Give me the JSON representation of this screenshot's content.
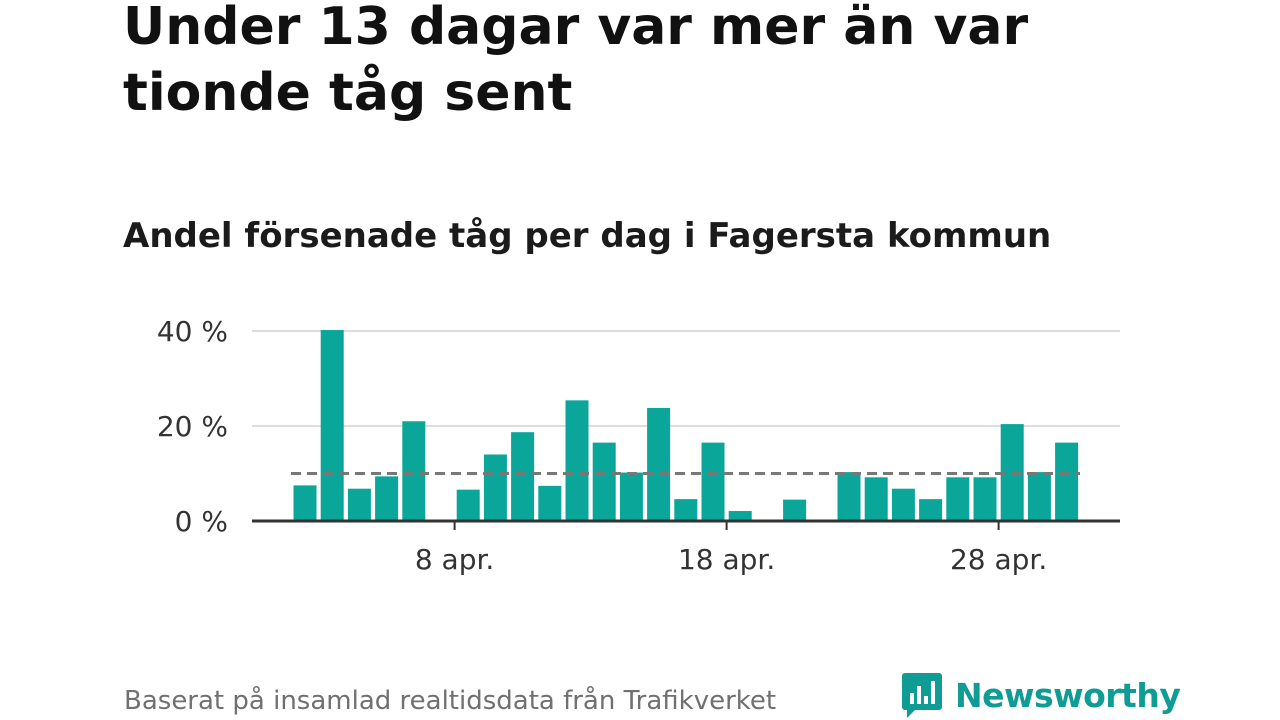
{
  "title": "Under 13 dagar var mer än var tionde tåg sent",
  "subtitle": "Andel försenade tåg per dag i Fagersta kommun",
  "source": "Baserat på insamlad realtidsdata från Trafikverket",
  "brand": {
    "name": "Newsworthy",
    "color": "#0e9c94"
  },
  "colors": {
    "bar": "#0ba69a",
    "reference": "#777777",
    "axis": "#333333",
    "grid": "#dddddd"
  },
  "chart_data": {
    "type": "bar",
    "x": [
      "2 apr.",
      "3 apr.",
      "4 apr.",
      "5 apr.",
      "6 apr.",
      "7 apr.",
      "8 apr.",
      "9 apr.",
      "10 apr.",
      "11 apr.",
      "12 apr.",
      "13 apr.",
      "14 apr.",
      "15 apr.",
      "16 apr.",
      "17 apr.",
      "18 apr.",
      "19 apr.",
      "20 apr.",
      "21 apr.",
      "22 apr.",
      "23 apr.",
      "24 apr.",
      "25 apr.",
      "26 apr.",
      "27 apr.",
      "28 apr.",
      "29 apr.",
      "30 apr."
    ],
    "values": [
      7.5,
      40.2,
      6.8,
      9.4,
      21.0,
      null,
      6.6,
      14.0,
      18.7,
      7.4,
      25.4,
      16.5,
      10.2,
      23.8,
      4.6,
      16.5,
      2.1,
      null,
      4.5,
      null,
      10.3,
      9.2,
      6.8,
      4.6,
      9.2,
      9.2,
      20.4,
      10.3,
      16.5
    ],
    "reference_line": 10,
    "xticks": [
      "8 apr.",
      "18 apr.",
      "28 apr."
    ],
    "yticks": [
      0,
      20,
      40
    ],
    "ytick_labels": [
      "0 %",
      "20 %",
      "40 %"
    ],
    "ylim": [
      0,
      40
    ],
    "grid": true,
    "xlabel": "",
    "ylabel": ""
  }
}
